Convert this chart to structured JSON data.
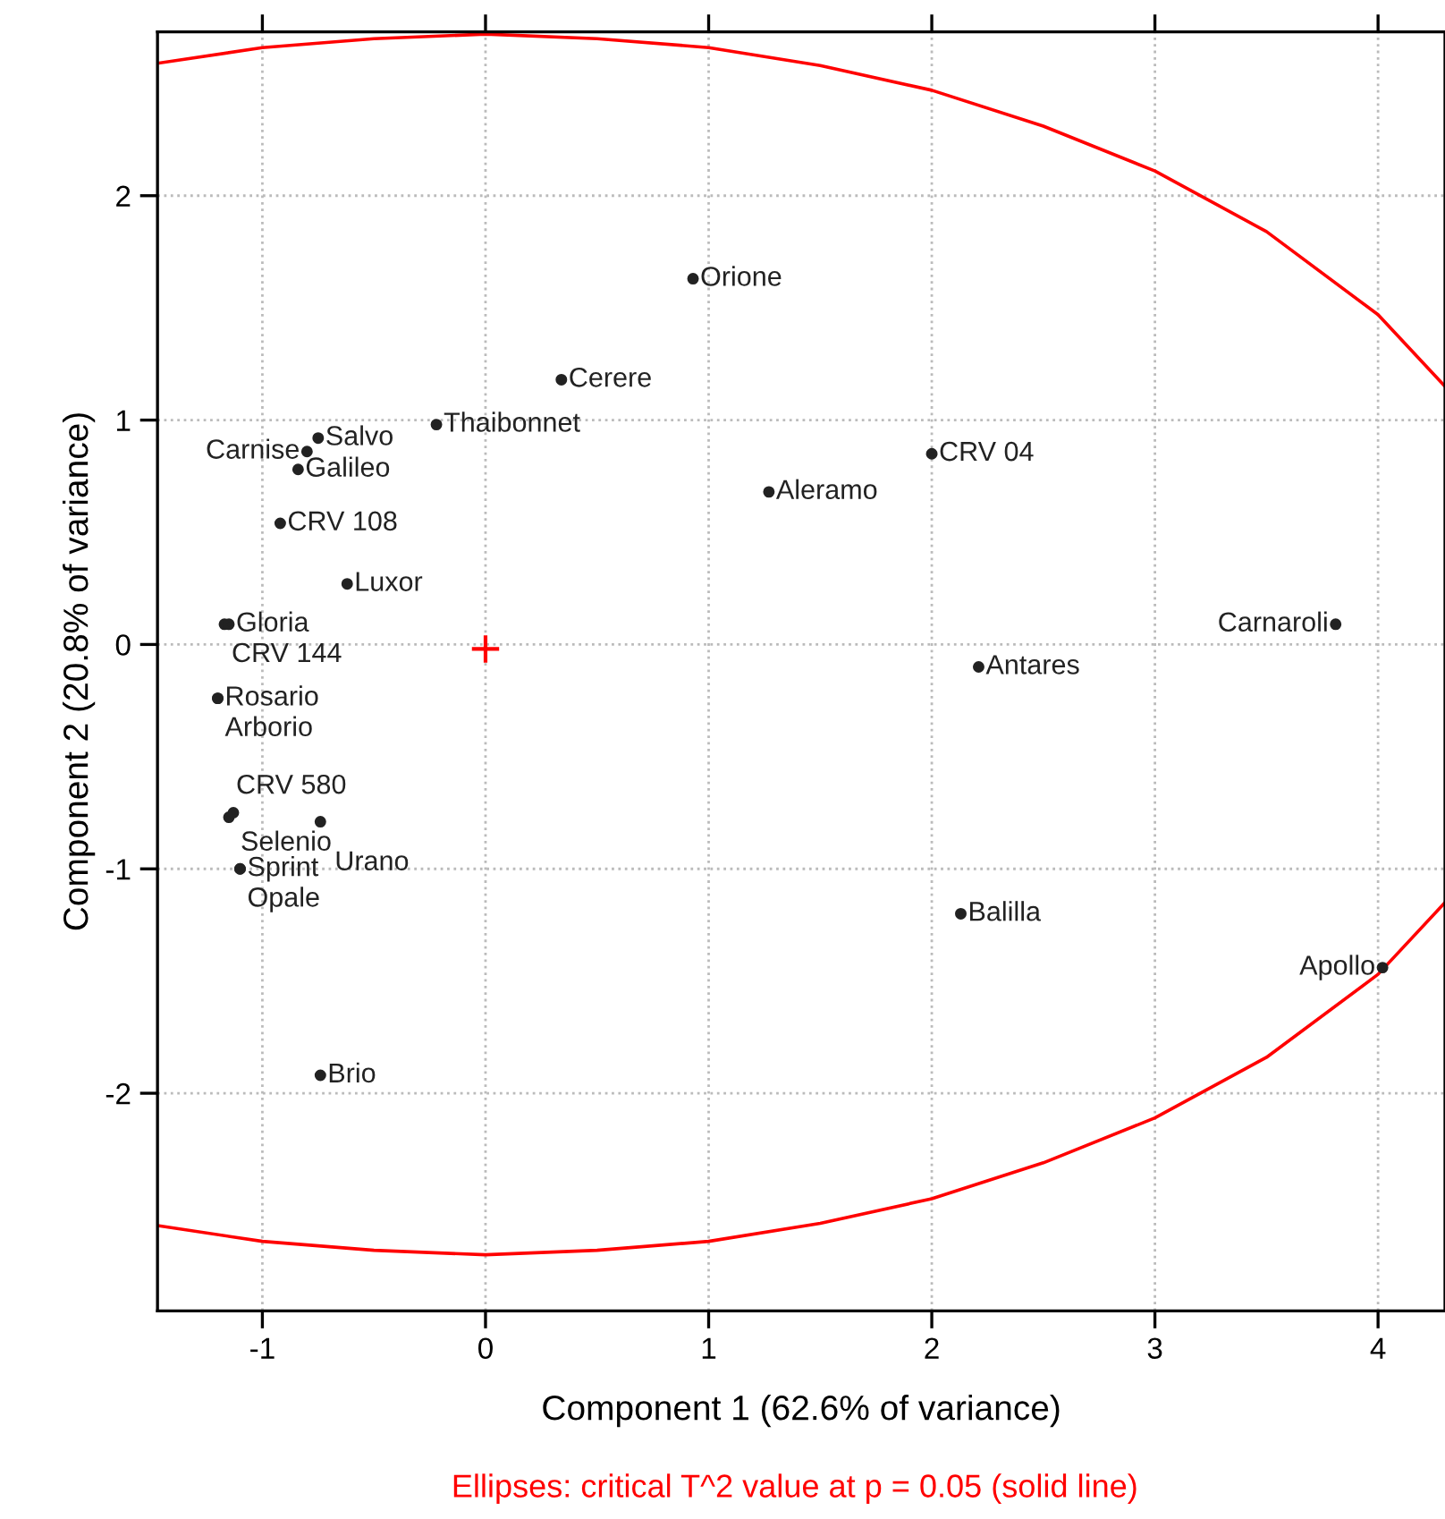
{
  "chart_data": {
    "type": "scatter",
    "xlabel": "Component 1 (62.6% of variance)",
    "ylabel": "Component 2 (20.8% of variance)",
    "xlim": [
      -1.47,
      4.3
    ],
    "ylim": [
      -2.97,
      2.73
    ],
    "xticks": [
      -1,
      0,
      1,
      2,
      3,
      4
    ],
    "yticks": [
      -2,
      -1,
      0,
      1,
      2
    ],
    "grid": true,
    "series": [
      {
        "marker": "circle",
        "color": "#222222",
        "x": [
          0.93,
          0.34,
          -0.22,
          -0.75,
          -0.8,
          -0.84,
          -0.92,
          -0.62,
          -1.17,
          -1.15,
          -1.2,
          -1.2,
          -1.15,
          -1.13,
          -0.74,
          -1.1,
          -1.1,
          -0.74,
          1.27,
          2.0,
          2.21,
          3.81,
          2.13,
          4.02
        ],
        "values": [
          1.63,
          1.18,
          0.98,
          0.92,
          0.86,
          0.78,
          0.54,
          0.27,
          0.09,
          0.09,
          -0.24,
          -0.24,
          -0.77,
          -0.75,
          -0.79,
          -1.0,
          -1.0,
          -1.92,
          0.68,
          0.85,
          -0.1,
          0.09,
          -1.2,
          -1.44
        ],
        "value_labels": [
          "Orione",
          "Cerere",
          "Thaibonnet",
          "Salvo",
          "Carnise",
          "Galileo",
          "CRV 108",
          "Luxor",
          "CRV 144",
          "Gloria",
          "Rosario",
          "Arborio",
          "CRV 580",
          "Selenio",
          "Urano",
          "Sprint",
          "Opale",
          "Brio",
          "Aleramo",
          "CRV 04",
          "Antares",
          "Carnaroli",
          "Balilla",
          "Apollo"
        ]
      },
      {
        "type": "scatter",
        "color": "#ff0000",
        "marker": "cross",
        "x": [
          0
        ],
        "values": [
          -0.02
        ]
      },
      {
        "type": "line",
        "color": "#ff0000",
        "line_style": "solid",
        "marker": "none",
        "x": [
          -1.47,
          -1,
          -0.5,
          0,
          0.5,
          1,
          1.5,
          2,
          2.5,
          3,
          3.5,
          4,
          4.3
        ],
        "values": [
          2.59,
          2.66,
          2.7,
          2.72,
          2.7,
          2.66,
          2.58,
          2.47,
          2.31,
          2.11,
          1.84,
          1.47,
          1.15
        ]
      },
      {
        "type": "line",
        "color": "#ff0000",
        "line_style": "solid",
        "marker": "none",
        "x": [
          -1.47,
          -1,
          -0.5,
          0,
          0.5,
          1,
          1.5,
          2,
          2.5,
          3,
          3.5,
          4,
          4.3
        ],
        "values": [
          -2.59,
          -2.66,
          -2.7,
          -2.72,
          -2.7,
          -2.66,
          -2.58,
          -2.47,
          -2.31,
          -2.11,
          -1.84,
          -1.47,
          -1.15
        ]
      }
    ],
    "annotations": [
      "Ellipses: critical T^2 value at p = 0.05 (solid line)"
    ]
  }
}
